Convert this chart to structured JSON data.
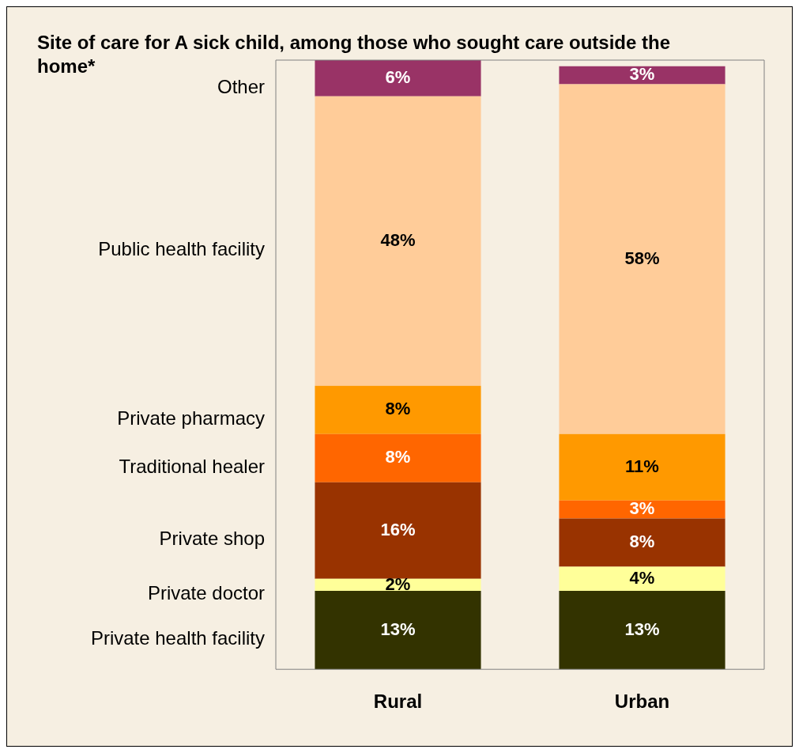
{
  "chart_data": {
    "type": "bar",
    "title": "Site of care for A sick child, among those who sought care outside the home*",
    "stacked": true,
    "categories": [
      "Rural",
      "Urban"
    ],
    "series": [
      {
        "name": "Private health facility",
        "color": "#333300",
        "values": [
          13,
          13
        ],
        "value_labels": [
          "13%",
          "13%"
        ]
      },
      {
        "name": "Private doctor",
        "color": "#ffff99",
        "values": [
          2,
          4
        ],
        "value_labels": [
          "2%",
          "4%"
        ]
      },
      {
        "name": "Private shop",
        "color": "#993300",
        "values": [
          16,
          8
        ],
        "value_labels": [
          "16%",
          "8%"
        ]
      },
      {
        "name": "Traditional healer",
        "color": "#ff6600",
        "values": [
          8,
          3
        ],
        "value_labels": [
          "8%",
          "3%"
        ]
      },
      {
        "name": "Private pharmacy",
        "color": "#ff9900",
        "values": [
          8,
          11
        ],
        "value_labels": [
          "8%",
          "11%"
        ]
      },
      {
        "name": "Public health facility",
        "color": "#ffcc99",
        "values": [
          48,
          58
        ],
        "value_labels": [
          "48%",
          "58%"
        ]
      },
      {
        "name": "Other",
        "color": "#993366",
        "values": [
          6,
          3
        ],
        "value_labels": [
          "6%",
          "3%"
        ]
      }
    ]
  }
}
